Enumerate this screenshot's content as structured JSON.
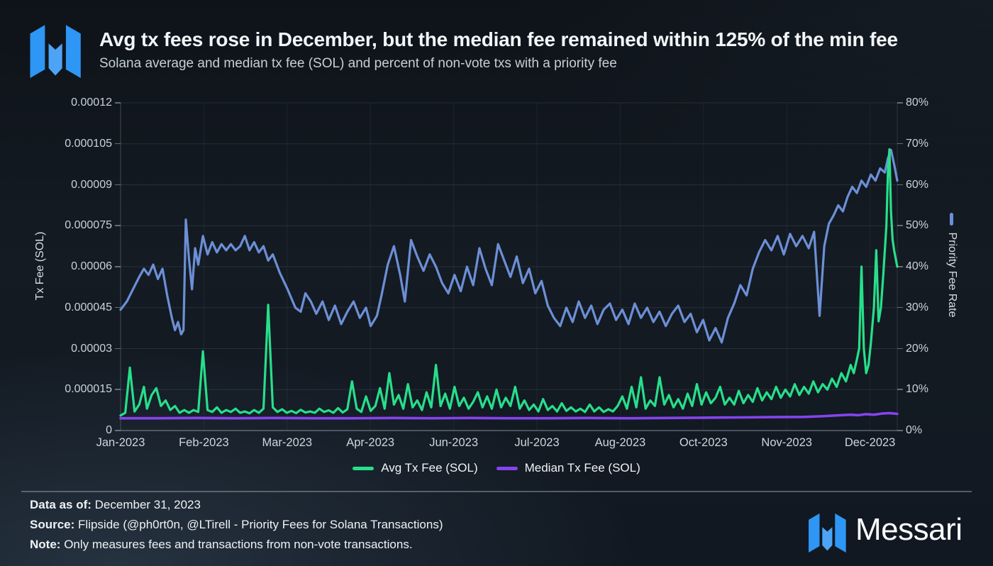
{
  "header": {
    "title": "Avg tx fees rose in December, but the median fee remained within 125% of the min fee",
    "subtitle": "Solana average and median tx fee (SOL) and percent of non-vote txs with a priority fee"
  },
  "branding": {
    "wordmark": "Messari",
    "logo_color_outer": "#2e96f4",
    "logo_color_middle": "#4da4f6"
  },
  "chart_data": {
    "type": "line",
    "grid": true,
    "x_axis": {
      "tick_labels": [
        "Jan-2023",
        "Feb-2023",
        "Mar-2023",
        "Apr-2023",
        "Jun-2023",
        "Jul-2023",
        "Aug-2023",
        "Oct-2023",
        "Nov-2023",
        "Dec-2023"
      ]
    },
    "y_axis_left": {
      "label": "Tx Fee (SOL)",
      "min": 0,
      "max": 0.00012,
      "tick_labels": [
        "0.00012",
        "0.000105",
        "0.00009",
        "0.000075",
        "0.00006",
        "0.000045",
        "0.00003",
        "0.000015",
        "0"
      ]
    },
    "y_axis_right": {
      "label": "Priority Fee Rate",
      "min": 0,
      "max": 80,
      "unit": "%",
      "tick_labels": [
        "80%",
        "70%",
        "60%",
        "50%",
        "40%",
        "30%",
        "20%",
        "10%",
        "0%"
      ]
    },
    "legend": [
      {
        "label": "Avg Tx Fee (SOL)",
        "color": "#27df8a"
      },
      {
        "label": "Median Tx Fee (SOL)",
        "color": "#8643ee"
      }
    ],
    "series": [
      {
        "key": "priority-fee-rate",
        "name": "Priority Fee Rate",
        "axis": "right",
        "color": "#6c8fd6",
        "width": 3.2,
        "x": [
          0,
          0.008,
          0.016,
          0.024,
          0.03,
          0.036,
          0.042,
          0.048,
          0.054,
          0.06,
          0.066,
          0.07,
          0.074,
          0.078,
          0.081,
          0.084,
          0.088,
          0.092,
          0.096,
          0.1,
          0.106,
          0.112,
          0.118,
          0.124,
          0.13,
          0.136,
          0.142,
          0.148,
          0.154,
          0.16,
          0.166,
          0.172,
          0.178,
          0.184,
          0.19,
          0.196,
          0.205,
          0.215,
          0.225,
          0.232,
          0.238,
          0.245,
          0.252,
          0.26,
          0.268,
          0.276,
          0.284,
          0.292,
          0.3,
          0.308,
          0.316,
          0.322,
          0.33,
          0.336,
          0.344,
          0.352,
          0.36,
          0.366,
          0.374,
          0.382,
          0.39,
          0.398,
          0.406,
          0.414,
          0.422,
          0.43,
          0.438,
          0.446,
          0.454,
          0.462,
          0.47,
          0.478,
          0.486,
          0.494,
          0.502,
          0.51,
          0.518,
          0.526,
          0.534,
          0.542,
          0.55,
          0.558,
          0.566,
          0.574,
          0.582,
          0.59,
          0.598,
          0.606,
          0.614,
          0.622,
          0.63,
          0.638,
          0.646,
          0.654,
          0.662,
          0.67,
          0.678,
          0.686,
          0.694,
          0.702,
          0.71,
          0.718,
          0.726,
          0.734,
          0.742,
          0.75,
          0.758,
          0.766,
          0.774,
          0.782,
          0.79,
          0.798,
          0.806,
          0.814,
          0.822,
          0.83,
          0.838,
          0.846,
          0.854,
          0.862,
          0.87,
          0.878,
          0.886,
          0.893,
          0.9,
          0.906,
          0.912,
          0.918,
          0.924,
          0.93,
          0.936,
          0.942,
          0.948,
          0.954,
          0.96,
          0.966,
          0.972,
          0.978,
          0.984,
          0.988,
          0.992,
          0.996,
          1
        ],
        "y": [
          29.5,
          31.5,
          34.5,
          37.5,
          39.5,
          38,
          40.5,
          37,
          39.5,
          33,
          27.5,
          24.5,
          26.5,
          23.5,
          24.5,
          51.5,
          42,
          34.5,
          44.5,
          40.5,
          47.5,
          43,
          46,
          43.5,
          45.5,
          44,
          45.5,
          44,
          45,
          47.5,
          44,
          46,
          43.5,
          45,
          41.5,
          43,
          38.5,
          34.5,
          30,
          29,
          33.5,
          31.5,
          28.5,
          31.5,
          27,
          30.5,
          26,
          29,
          31.5,
          27.5,
          30,
          25.5,
          28,
          33,
          40.5,
          45,
          38,
          31.5,
          46.5,
          42.5,
          39,
          43,
          40,
          36,
          33.5,
          38,
          34,
          40,
          35.5,
          44.5,
          39.5,
          35.5,
          45.5,
          41.5,
          37.5,
          42.5,
          36,
          39.5,
          33.5,
          36.5,
          30.5,
          27.5,
          25.5,
          30,
          26.5,
          31.5,
          27.5,
          30.5,
          26,
          29.5,
          31,
          27,
          29.5,
          26,
          31,
          27.5,
          30,
          26.5,
          29,
          25.5,
          28.5,
          30.5,
          26.5,
          28.5,
          24,
          27,
          22,
          25,
          21.5,
          27.5,
          31,
          35.5,
          33,
          39.5,
          43.5,
          46.5,
          44,
          47.5,
          43,
          48,
          45,
          47.5,
          44.5,
          48.5,
          28,
          45,
          50.5,
          52.5,
          55,
          53.5,
          57,
          59.5,
          58,
          61,
          59.5,
          62.5,
          61,
          64,
          63,
          66.5,
          68.5,
          65,
          61
        ]
      },
      {
        "key": "median-tx-fee",
        "name": "Median Tx Fee (SOL)",
        "axis": "left",
        "color": "#8643ee",
        "width": 3.6,
        "x": [
          0,
          0.05,
          0.1,
          0.15,
          0.2,
          0.25,
          0.3,
          0.35,
          0.4,
          0.45,
          0.5,
          0.55,
          0.6,
          0.65,
          0.7,
          0.75,
          0.8,
          0.84,
          0.88,
          0.9,
          0.92,
          0.94,
          0.95,
          0.96,
          0.97,
          0.98,
          0.99,
          1
        ],
        "y": [
          4.5e-06,
          4.5e-06,
          4.6e-06,
          4.5e-06,
          4.6e-06,
          4.5e-06,
          4.5e-06,
          4.6e-06,
          4.5e-06,
          4.6e-06,
          4.5e-06,
          4.5e-06,
          4.6e-06,
          4.5e-06,
          4.6e-06,
          4.7e-06,
          4.8e-06,
          4.9e-06,
          5e-06,
          5.2e-06,
          5.5e-06,
          5.8e-06,
          5.6e-06,
          6e-06,
          5.8e-06,
          6.2e-06,
          6.4e-06,
          6.1e-06
        ]
      },
      {
        "key": "avg-tx-fee",
        "name": "Avg Tx Fee (SOL)",
        "axis": "left",
        "color": "#27df8a",
        "width": 3.2,
        "x": [
          0,
          0.006,
          0.012,
          0.018,
          0.024,
          0.03,
          0.034,
          0.04,
          0.046,
          0.052,
          0.058,
          0.064,
          0.07,
          0.076,
          0.082,
          0.088,
          0.094,
          0.1,
          0.106,
          0.112,
          0.118,
          0.124,
          0.13,
          0.136,
          0.142,
          0.148,
          0.154,
          0.16,
          0.166,
          0.172,
          0.178,
          0.184,
          0.19,
          0.196,
          0.202,
          0.208,
          0.214,
          0.22,
          0.226,
          0.232,
          0.238,
          0.244,
          0.25,
          0.256,
          0.262,
          0.268,
          0.274,
          0.28,
          0.286,
          0.292,
          0.298,
          0.304,
          0.31,
          0.316,
          0.322,
          0.328,
          0.334,
          0.34,
          0.346,
          0.352,
          0.358,
          0.364,
          0.37,
          0.376,
          0.382,
          0.388,
          0.394,
          0.4,
          0.406,
          0.412,
          0.418,
          0.424,
          0.43,
          0.436,
          0.442,
          0.448,
          0.454,
          0.46,
          0.466,
          0.472,
          0.478,
          0.484,
          0.49,
          0.496,
          0.502,
          0.508,
          0.514,
          0.52,
          0.526,
          0.532,
          0.538,
          0.544,
          0.55,
          0.556,
          0.562,
          0.568,
          0.574,
          0.58,
          0.586,
          0.592,
          0.598,
          0.604,
          0.61,
          0.616,
          0.622,
          0.628,
          0.634,
          0.64,
          0.646,
          0.652,
          0.658,
          0.664,
          0.67,
          0.676,
          0.682,
          0.688,
          0.694,
          0.7,
          0.706,
          0.712,
          0.718,
          0.724,
          0.73,
          0.736,
          0.742,
          0.748,
          0.754,
          0.76,
          0.766,
          0.772,
          0.778,
          0.784,
          0.79,
          0.796,
          0.802,
          0.808,
          0.814,
          0.82,
          0.826,
          0.832,
          0.838,
          0.844,
          0.85,
          0.856,
          0.862,
          0.868,
          0.874,
          0.88,
          0.886,
          0.892,
          0.898,
          0.904,
          0.91,
          0.916,
          0.922,
          0.928,
          0.934,
          0.94,
          0.944,
          0.948,
          0.951,
          0.954,
          0.957,
          0.96,
          0.963,
          0.966,
          0.97,
          0.973,
          0.976,
          0.979,
          0.982,
          0.984,
          0.986,
          0.988,
          0.99,
          0.992,
          0.994,
          0.996,
          0.998,
          1
        ],
        "y": [
          5.5e-06,
          6.5e-06,
          2.3e-05,
          7e-06,
          9.5e-06,
          1.6e-05,
          8e-06,
          1.3e-05,
          1.55e-05,
          9e-06,
          1.1e-05,
          7.5e-06,
          9e-06,
          6.5e-06,
          7.5e-06,
          6.5e-06,
          7.5e-06,
          6.8e-06,
          2.9e-05,
          7.5e-06,
          6.8e-06,
          8.5e-06,
          6.5e-06,
          7.5e-06,
          6.8e-06,
          8e-06,
          6.5e-06,
          7e-06,
          6.3e-06,
          7.5e-06,
          6.5e-06,
          8e-06,
          4.6e-05,
          8.5e-06,
          6.8e-06,
          7.8e-06,
          6.5e-06,
          7.2e-06,
          6.4e-06,
          7.6e-06,
          6.6e-06,
          7e-06,
          6.5e-06,
          8e-06,
          6.8e-06,
          7.4e-06,
          6.5e-06,
          8.2e-06,
          6.6e-06,
          7.8e-06,
          1.8e-05,
          8e-06,
          6.8e-06,
          1.25e-05,
          7.2e-06,
          9e-06,
          1.55e-05,
          8e-06,
          2.1e-05,
          9.5e-06,
          1.3e-05,
          8e-06,
          1.7e-05,
          8.5e-06,
          1.1e-05,
          7.5e-06,
          1.4e-05,
          8.5e-06,
          2.4e-05,
          9e-06,
          1.35e-05,
          8e-06,
          1.6e-05,
          9e-06,
          1.2e-05,
          8e-06,
          1.05e-05,
          1.4e-05,
          8.5e-06,
          1.25e-05,
          8e-06,
          1.5e-05,
          8.5e-06,
          1.2e-05,
          9e-06,
          1.6e-05,
          8e-06,
          1.1e-05,
          7.5e-06,
          9.5e-06,
          7e-06,
          1.15e-05,
          7.5e-06,
          9e-06,
          7e-06,
          1e-05,
          7.2e-06,
          8.5e-06,
          7e-06,
          8e-06,
          6.8e-06,
          9.5e-06,
          7e-06,
          8.5e-06,
          6.8e-06,
          7.8e-06,
          7e-06,
          9e-06,
          1.25e-05,
          8e-06,
          1.6e-05,
          8.5e-06,
          1.95e-05,
          8e-06,
          1.1e-05,
          9e-06,
          1.95e-05,
          9.5e-06,
          1.3e-05,
          8.5e-06,
          1.15e-05,
          8e-06,
          1.35e-05,
          9e-06,
          1.7e-05,
          9.5e-06,
          1.4e-05,
          1e-05,
          1.2e-05,
          1.6e-05,
          9.5e-06,
          1.2e-05,
          9.5e-06,
          1.45e-05,
          1e-05,
          1.3e-05,
          1.05e-05,
          1.55e-05,
          1.1e-05,
          1.4e-05,
          1.15e-05,
          1.6e-05,
          1.2e-05,
          1.5e-05,
          1.25e-05,
          1.7e-05,
          1.3e-05,
          1.6e-05,
          1.35e-05,
          1.8e-05,
          1.4e-05,
          1.7e-05,
          1.5e-05,
          1.9e-05,
          1.6e-05,
          2.1e-05,
          1.8e-05,
          2.4e-05,
          2.1e-05,
          2.6e-05,
          3e-05,
          6e-05,
          3e-05,
          2.1e-05,
          2.4e-05,
          3.2e-05,
          4.5e-05,
          6.6e-05,
          4e-05,
          4.5e-05,
          5.7e-05,
          6.6e-05,
          7.5e-05,
          9.5e-05,
          0.000103,
          8e-05,
          7e-05,
          6.6e-05,
          6.3e-05,
          6e-05
        ]
      }
    ]
  },
  "footer": {
    "data_as_of_label": "Data as of:",
    "data_as_of": "December 31, 2023",
    "source_label": "Source:",
    "source": "Flipside (@ph0rt0n, @LTirell - Priority Fees for Solana Transactions)",
    "note_label": "Note:",
    "note": "Only measures fees and transactions from non-vote transactions."
  }
}
